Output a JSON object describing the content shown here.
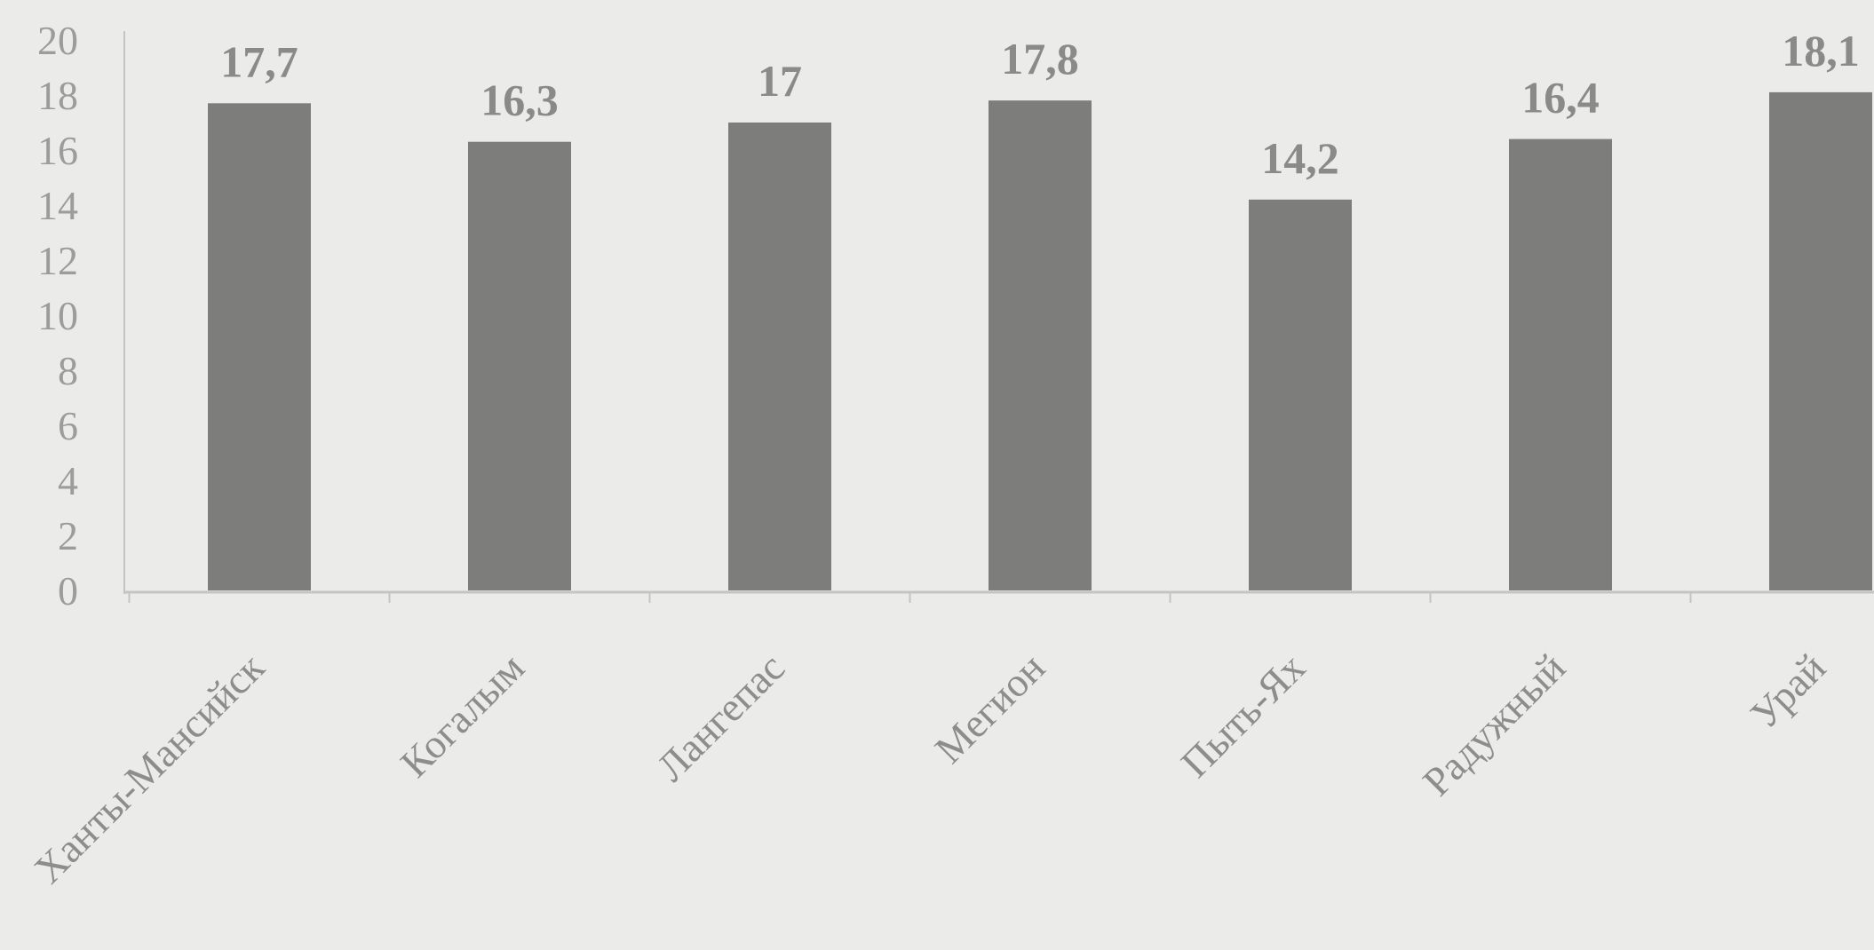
{
  "chart_data": {
    "type": "bar",
    "categories": [
      "Ханты-Мансийск",
      "Когалым",
      "Лангепас",
      "Мегион",
      "Пыть-Ях",
      "Радужный",
      "Урай"
    ],
    "values": [
      17.7,
      16.3,
      17,
      17.8,
      14.2,
      16.4,
      18.1
    ],
    "value_labels": [
      "17,7",
      "16,3",
      "17",
      "17,8",
      "14,2",
      "16,4",
      "18,1"
    ],
    "y_ticks": [
      "0",
      "2",
      "4",
      "6",
      "8",
      "10",
      "12",
      "14",
      "16",
      "18",
      "20"
    ],
    "ylim": [
      0,
      20
    ],
    "title": "",
    "xlabel": "",
    "ylabel": "",
    "grid": false,
    "legend": "none",
    "colors": {
      "background": "#ebebe9",
      "bar": "#7d7d7b",
      "axis": "#c4c4c2"
    }
  }
}
